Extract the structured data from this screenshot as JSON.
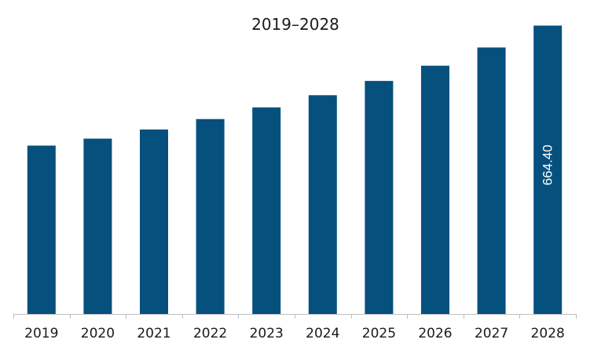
{
  "chart_data": {
    "type": "bar",
    "title": "2019–2028",
    "xlabel": "",
    "ylabel": "",
    "categories": [
      "2019",
      "2020",
      "2021",
      "2022",
      "2023",
      "2024",
      "2025",
      "2026",
      "2027",
      "2028"
    ],
    "values": [
      388.0,
      404.0,
      425.0,
      449.0,
      476.0,
      504.0,
      537.0,
      572.0,
      614.0,
      664.4
    ],
    "data_labels": [
      {
        "category": "2028",
        "text": "664.40"
      }
    ],
    "ylim": [
      0,
      680
    ],
    "grid": false,
    "legend": "none",
    "colors": {
      "bar": "#06507e",
      "axis": "#bfbfbf",
      "text": "#1a1a1a",
      "data_label": "#ffffff"
    }
  }
}
